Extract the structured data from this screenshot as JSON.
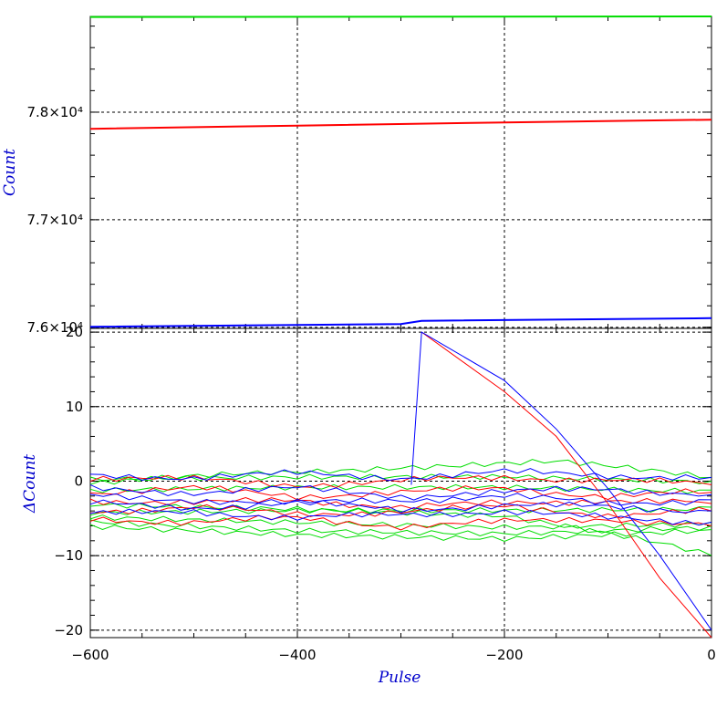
{
  "chart_data": [
    {
      "type": "line",
      "panel": "top",
      "ylabel": "Count",
      "xlim": [
        -600,
        0
      ],
      "ylim": [
        75990,
        78890
      ],
      "y_ticks": [
        {
          "value": 76000,
          "label": "7.6×10⁴"
        },
        {
          "value": 77000,
          "label": "7.7×10⁴"
        },
        {
          "value": 78000,
          "label": "7.8×10⁴"
        }
      ],
      "grid": true,
      "series": [
        {
          "color": "#00dd00",
          "x": [
            -600,
            0
          ],
          "y": [
            78885,
            78890
          ]
        },
        {
          "color": "#ff0000",
          "x": [
            -600,
            -400,
            -200,
            0
          ],
          "y": [
            77845,
            77875,
            77905,
            77930
          ]
        },
        {
          "color": "#0000ff",
          "x": [
            -600,
            -300,
            -280,
            0
          ],
          "y": [
            76005,
            76030,
            76060,
            76085
          ]
        }
      ]
    },
    {
      "type": "line",
      "panel": "bottom",
      "xlabel": "Pulse",
      "ylabel": "ΔCount",
      "xlim": [
        -600,
        0
      ],
      "ylim": [
        -21,
        20.5
      ],
      "x_ticks": [
        {
          "value": -600,
          "label": "−600"
        },
        {
          "value": -400,
          "label": "−400"
        },
        {
          "value": -200,
          "label": "−200"
        },
        {
          "value": 0,
          "label": "0"
        }
      ],
      "y_ticks": [
        {
          "value": -20,
          "label": "−20"
        },
        {
          "value": -10,
          "label": "−10"
        },
        {
          "value": 0,
          "label": "0"
        },
        {
          "value": 10,
          "label": "10"
        },
        {
          "value": 20,
          "label": "20"
        }
      ],
      "grid": true,
      "series": [
        {
          "color": "#00dd00",
          "x": [
            -600,
            -450,
            -300,
            -150,
            0
          ],
          "y": [
            -0.5,
            1.0,
            2.0,
            2.5,
            0.5
          ]
        },
        {
          "color": "#00dd00",
          "x": [
            -600,
            -400,
            -200,
            0
          ],
          "y": [
            0.0,
            0.3,
            0.5,
            0.0
          ]
        },
        {
          "color": "#00dd00",
          "x": [
            -600,
            -400,
            -200,
            0
          ],
          "y": [
            -1.5,
            -1.0,
            -0.8,
            -1.2
          ]
        },
        {
          "color": "#00dd00",
          "x": [
            -600,
            -400,
            -200,
            0
          ],
          "y": [
            -4.5,
            -4.0,
            -3.8,
            -3.5
          ]
        },
        {
          "color": "#00dd00",
          "x": [
            -600,
            -400,
            -200,
            0
          ],
          "y": [
            -5.0,
            -5.5,
            -6.0,
            -5.5
          ]
        },
        {
          "color": "#00dd00",
          "x": [
            -600,
            -400,
            -200,
            0
          ],
          "y": [
            -5.5,
            -6.5,
            -6.8,
            -6.0
          ]
        },
        {
          "color": "#00dd00",
          "x": [
            -600,
            -400,
            -200,
            0
          ],
          "y": [
            -6.0,
            -7.0,
            -7.5,
            -6.5
          ]
        },
        {
          "color": "#00dd00",
          "x": [
            -600,
            -400,
            -200,
            -50,
            0
          ],
          "y": [
            -3.0,
            -3.5,
            -4.5,
            -8.5,
            -10.0
          ]
        },
        {
          "color": "#ff0000",
          "x": [
            -600,
            -500,
            -400,
            -300,
            -200,
            -100,
            0
          ],
          "y": [
            0.5,
            0.2,
            -0.5,
            0.0,
            0.5,
            0.2,
            -0.5
          ]
        },
        {
          "color": "#ff0000",
          "x": [
            -600,
            -500,
            -400,
            -300,
            -200,
            -100,
            0
          ],
          "y": [
            -1.5,
            -1.0,
            -2.0,
            -1.5,
            -1.0,
            -2.0,
            -1.5
          ]
        },
        {
          "color": "#ff0000",
          "x": [
            -600,
            -500,
            -400,
            -300,
            -200,
            -100,
            0
          ],
          "y": [
            -2.5,
            -3.0,
            -2.5,
            -3.5,
            -3.0,
            -2.5,
            -3.0
          ]
        },
        {
          "color": "#ff0000",
          "x": [
            -600,
            -500,
            -400,
            -300,
            -200,
            -100,
            0
          ],
          "y": [
            -4.0,
            -3.5,
            -4.5,
            -4.0,
            -3.5,
            -4.5,
            -4.0
          ]
        },
        {
          "color": "#ff0000",
          "x": [
            -600,
            -500,
            -400,
            -300,
            -200,
            -100,
            0
          ],
          "y": [
            -5.0,
            -5.5,
            -5.0,
            -6.0,
            -5.5,
            -5.0,
            -6.0
          ]
        },
        {
          "color": "#0000ff",
          "x": [
            -600,
            -500,
            -400,
            -300,
            -200,
            -100,
            0
          ],
          "y": [
            0.8,
            0.5,
            1.0,
            0.5,
            1.2,
            0.8,
            0.5
          ]
        },
        {
          "color": "#0000ff",
          "x": [
            -600,
            -500,
            -400,
            -300,
            -200,
            -100,
            0
          ],
          "y": [
            -1.0,
            -1.5,
            -1.0,
            -2.0,
            -1.5,
            -1.0,
            -1.8
          ]
        },
        {
          "color": "#0000ff",
          "x": [
            -600,
            -500,
            -400,
            -300,
            -200,
            -100,
            0
          ],
          "y": [
            -2.0,
            -2.5,
            -3.0,
            -2.5,
            -2.0,
            -3.0,
            -2.5
          ]
        },
        {
          "color": "#0000ff",
          "x": [
            -600,
            -500,
            -400,
            -300,
            -200,
            -100,
            0
          ],
          "y": [
            -3.0,
            -3.5,
            -3.0,
            -3.8,
            -3.2,
            -3.5,
            -4.0
          ]
        },
        {
          "color": "#0000ff",
          "x": [
            -600,
            -500,
            -400,
            -300,
            -200,
            -100,
            0
          ],
          "y": [
            -4.5,
            -4.0,
            -5.0,
            -4.5,
            -4.0,
            -5.0,
            -5.5
          ]
        },
        {
          "color": "#ff0000",
          "x": [
            -280,
            -200,
            -150,
            -100,
            -50,
            0
          ],
          "y": [
            20.0,
            12.0,
            6.0,
            -3.0,
            -13.0,
            -21.0
          ]
        },
        {
          "color": "#0000ff",
          "x": [
            -290,
            -280,
            -200,
            -150,
            -100,
            -50,
            0
          ],
          "y": [
            -0.5,
            20.0,
            13.5,
            7.0,
            -1.0,
            -10.0,
            -20.0
          ]
        }
      ]
    }
  ]
}
